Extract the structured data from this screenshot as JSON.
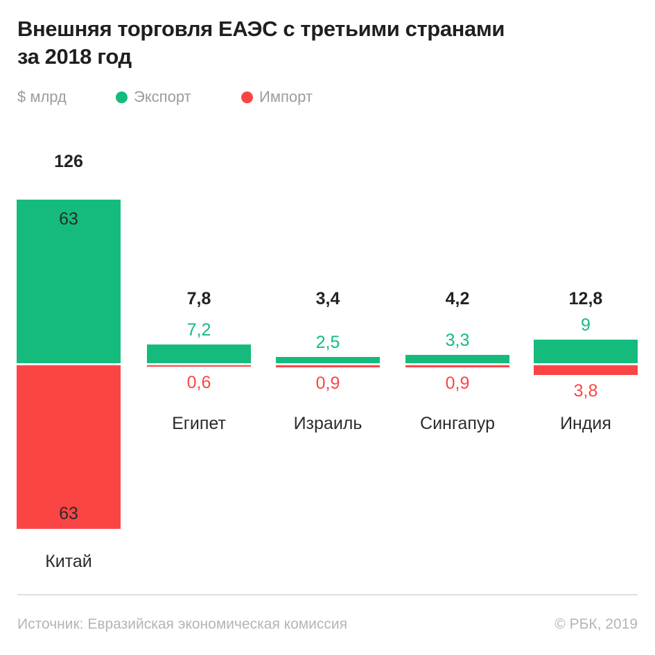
{
  "title": {
    "line1": "Внешняя торговля ЕАЭС с третьими странами",
    "line2": "за 2018 год"
  },
  "legend": {
    "unit": "$ млрд",
    "export_label": "Экспорт",
    "import_label": "Импорт"
  },
  "colors": {
    "export_green": "#15bb7d",
    "import_red": "#fb4545",
    "text_dark": "#232323",
    "text_gray": "#9c9c9c",
    "footer_gray": "#b5b5b5",
    "divider_gray": "#dedede"
  },
  "chart_data": {
    "type": "bar",
    "subtype": "diverging-stacked",
    "unit": "$ млрд",
    "title": "Внешняя торговля ЕАЭС с третьими странами за 2018 год",
    "categories": [
      "Китай",
      "Египет",
      "Израиль",
      "Сингапур",
      "Индия"
    ],
    "series": [
      {
        "name": "Экспорт",
        "color": "#15bb7d",
        "direction": "up",
        "values": [
          63,
          7.2,
          2.5,
          3.3,
          9
        ],
        "labels": [
          "63",
          "7,2",
          "2,5",
          "3,3",
          "9"
        ]
      },
      {
        "name": "Импорт",
        "color": "#fb4545",
        "direction": "down",
        "values": [
          63,
          0.6,
          0.9,
          0.9,
          3.8
        ],
        "labels": [
          "63",
          "0,6",
          "0,9",
          "0,9",
          "3,8"
        ]
      }
    ],
    "totals": {
      "values": [
        126,
        7.8,
        3.4,
        4.2,
        12.8
      ],
      "labels": [
        "126",
        "7,8",
        "3,4",
        "4,2",
        "12,8"
      ]
    },
    "legend_position": "top",
    "grid": false,
    "value_axis_shown": false
  },
  "footer": {
    "source": "Источник: Евразийская экономическая комиссия",
    "copyright": "© РБК, 2019"
  }
}
